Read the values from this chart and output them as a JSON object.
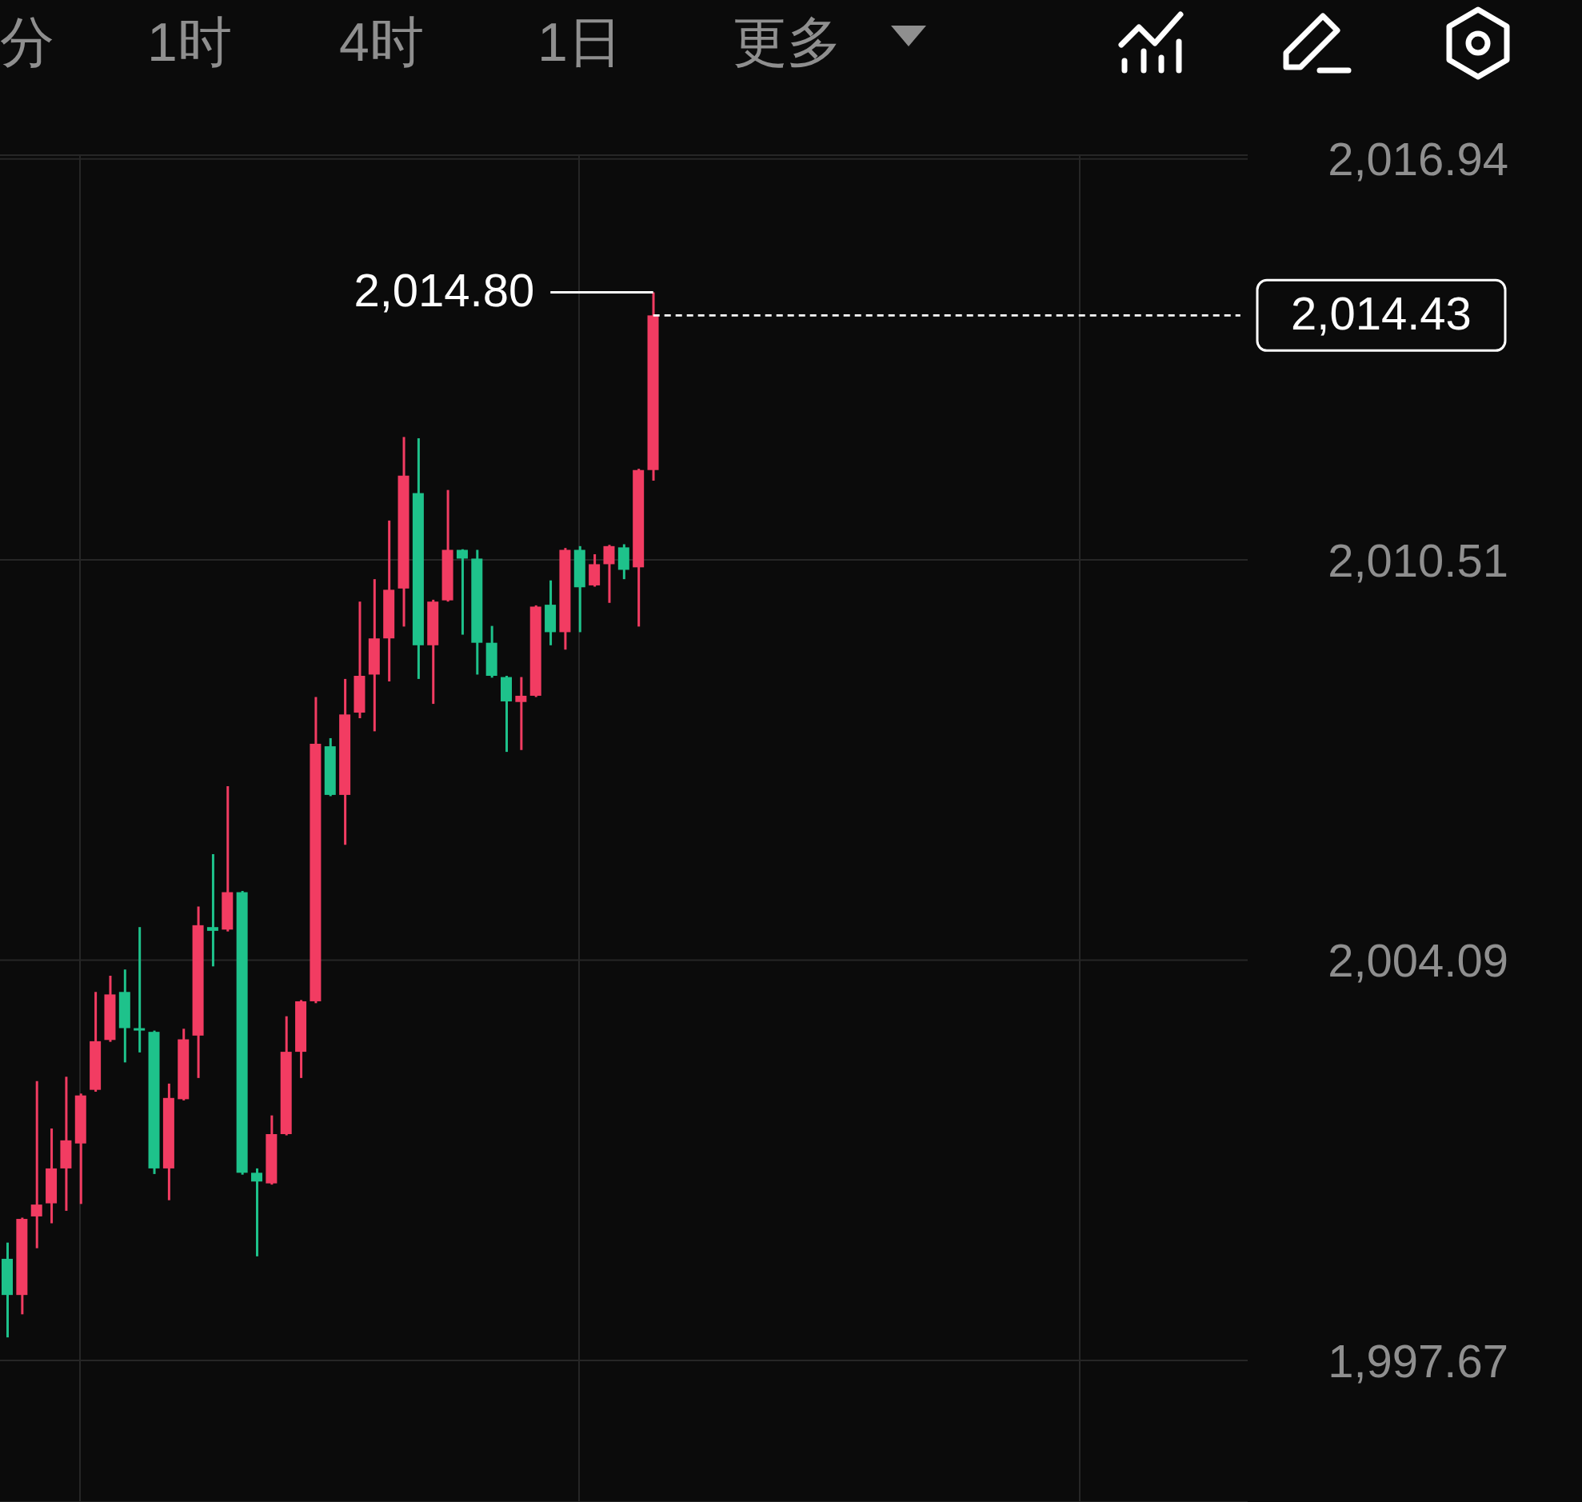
{
  "chart_data": {
    "type": "candlestick",
    "categories": [
      null,
      null,
      null,
      null,
      null,
      null,
      null,
      null,
      null,
      null,
      null,
      null,
      null,
      null,
      null,
      null,
      null,
      null,
      null,
      null,
      null,
      null,
      null,
      null,
      null,
      null,
      null,
      null,
      null,
      null,
      null,
      null,
      null,
      null,
      null,
      null,
      null,
      null,
      null,
      null,
      null,
      null,
      null,
      null,
      null,
      null,
      null,
      null,
      null,
      null,
      null,
      null,
      null,
      null,
      null,
      null,
      null,
      null,
      null,
      null,
      null,
      null,
      null,
      null,
      null,
      null,
      null,
      null,
      null,
      null,
      null,
      null,
      null,
      null,
      null,
      null,
      null,
      null,
      null,
      null,
      null,
      null,
      null,
      null,
      null
    ],
    "ohlc": [
      [
        1999.3,
        1999.56,
        1998.04,
        1998.72
      ],
      [
        1998.72,
        1999.96,
        1998.41,
        1999.94
      ],
      [
        1999.98,
        2002.15,
        1999.47,
        2000.17
      ],
      [
        2000.19,
        2001.39,
        1999.87,
        2000.75
      ],
      [
        2000.75,
        2002.22,
        2000.07,
        2001.2
      ],
      [
        2001.15,
        2001.95,
        2000.18,
        2001.92
      ],
      [
        2002.01,
        2003.58,
        2001.98,
        2002.79
      ],
      [
        2002.81,
        2003.84,
        2002.78,
        2003.54
      ],
      [
        2003.58,
        2003.94,
        2002.45,
        2003.0
      ],
      [
        2002.98,
        2004.62,
        2002.61,
        2002.95
      ],
      [
        2002.94,
        2002.96,
        2000.66,
        2000.75
      ],
      [
        2000.75,
        2002.11,
        2000.24,
        2001.88
      ],
      [
        2001.86,
        2002.99,
        2001.84,
        2002.82
      ],
      [
        2002.88,
        2004.95,
        2002.2,
        2004.65
      ],
      [
        2004.62,
        2005.79,
        2003.99,
        2004.56
      ],
      [
        2004.58,
        2006.88,
        2004.55,
        2005.18
      ],
      [
        2005.18,
        2005.2,
        2000.65,
        2000.68
      ],
      [
        2000.68,
        2000.75,
        1999.34,
        2000.54
      ],
      [
        2000.51,
        2001.6,
        2000.49,
        2001.3
      ],
      [
        2001.3,
        2003.19,
        2001.28,
        2002.62
      ],
      [
        2002.62,
        2003.45,
        2002.2,
        2003.43
      ],
      [
        2003.43,
        2008.31,
        2003.4,
        2007.56
      ],
      [
        2007.52,
        2007.65,
        2006.72,
        2006.74
      ],
      [
        2006.74,
        2008.6,
        2005.94,
        2008.03
      ],
      [
        2008.06,
        2009.84,
        2007.97,
        2008.65
      ],
      [
        2008.67,
        2010.2,
        2007.76,
        2009.25
      ],
      [
        2009.25,
        2011.14,
        2008.56,
        2010.03
      ],
      [
        2010.05,
        2012.48,
        2009.44,
        2011.86
      ],
      [
        2011.58,
        2012.46,
        2008.6,
        2009.14
      ],
      [
        2009.14,
        2009.87,
        2008.2,
        2009.84
      ],
      [
        2009.86,
        2011.63,
        2009.84,
        2010.67
      ],
      [
        2010.67,
        2010.68,
        2009.31,
        2010.53
      ],
      [
        2010.53,
        2010.67,
        2008.67,
        2009.18
      ],
      [
        2009.18,
        2009.45,
        2008.62,
        2008.65
      ],
      [
        2008.63,
        2008.65,
        2007.43,
        2008.24
      ],
      [
        2008.23,
        2008.63,
        2007.46,
        2008.33
      ],
      [
        2008.33,
        2009.78,
        2008.31,
        2009.76
      ],
      [
        2009.79,
        2010.18,
        2009.14,
        2009.35
      ],
      [
        2009.35,
        2010.7,
        2009.07,
        2010.67
      ],
      [
        2010.67,
        2010.73,
        2009.35,
        2010.07
      ],
      [
        2010.1,
        2010.6,
        2010.08,
        2010.44
      ],
      [
        2010.44,
        2010.75,
        2009.82,
        2010.73
      ],
      [
        2010.71,
        2010.76,
        2010.2,
        2010.35
      ],
      [
        2010.39,
        2011.97,
        2009.44,
        2011.95
      ],
      [
        2011.95,
        2014.8,
        2011.78,
        2014.43
      ],
      null,
      null,
      null,
      null,
      null,
      null,
      null,
      null,
      null,
      null,
      null,
      null,
      null,
      null,
      null,
      null,
      null,
      null,
      null,
      null,
      null,
      null,
      null,
      null,
      null,
      null,
      null,
      null,
      null,
      null,
      null,
      null,
      null,
      null,
      null,
      null,
      null,
      null,
      null,
      null
    ],
    "colors": [
      "#1ec28b",
      "#f23c62",
      "#f23c62",
      "#f23c62",
      "#f23c62",
      "#f23c62",
      "#f23c62",
      "#f23c62",
      "#1ec28b",
      "#1ec28b",
      "#1ec28b",
      "#f23c62",
      "#f23c62",
      "#f23c62",
      "#1ec28b",
      "#f23c62",
      "#1ec28b",
      "#1ec28b",
      "#f23c62",
      "#f23c62",
      "#f23c62",
      "#f23c62",
      "#1ec28b",
      "#f23c62",
      "#f23c62",
      "#f23c62",
      "#f23c62",
      "#f23c62",
      "#1ec28b",
      "#f23c62",
      "#f23c62",
      "#1ec28b",
      "#1ec28b",
      "#1ec28b",
      "#1ec28b",
      "#f23c62",
      "#f23c62",
      "#1ec28b",
      "#f23c62",
      "#1ec28b",
      "#f23c62",
      "#f23c62",
      "#1ec28b",
      "#f23c62",
      "#f23c62",
      null,
      null,
      null,
      null,
      null,
      null,
      null,
      null,
      null,
      null,
      null,
      null,
      null,
      null,
      null,
      null,
      null,
      null,
      null,
      null,
      null,
      null,
      null,
      null,
      null,
      null,
      null,
      null,
      null,
      null,
      null,
      null,
      null,
      null,
      null,
      null,
      null,
      null,
      null,
      null
    ],
    "ylim": [
      1995.4,
      2017.0
    ],
    "yticks": [
      {
        "value": 1997.67,
        "label": "1,997.67"
      },
      {
        "value": 2004.09,
        "label": "2,004.09"
      },
      {
        "value": 2010.51,
        "label": "2,010.51"
      },
      {
        "value": 2016.94,
        "label": "2,016.94"
      }
    ],
    "grid": true,
    "tick_labels": "y",
    "ref_lines": [
      {
        "axis": "y",
        "value": 2014.43,
        "label": "2,014.43",
        "color": "#ffffff",
        "line_style": "dashed"
      }
    ],
    "annotations": [
      "分",
      "1时",
      "4时",
      "1日",
      "更多",
      "2,014.80"
    ]
  }
}
